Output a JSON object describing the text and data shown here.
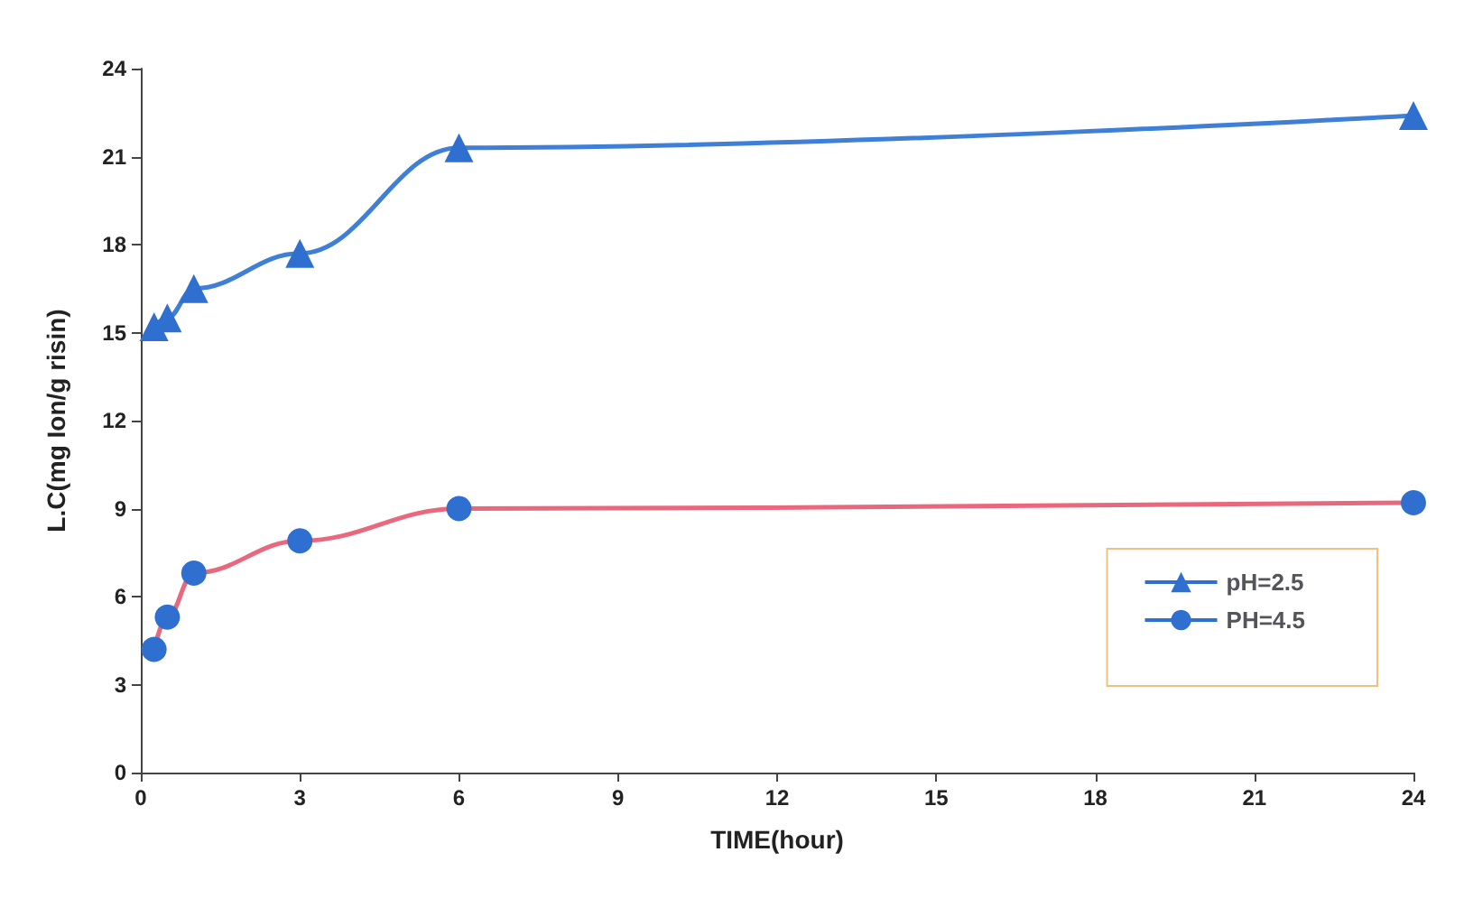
{
  "chart_data": {
    "type": "line",
    "xlabel": "TIME(hour)",
    "ylabel": "L.C(mg Ion/g risin)",
    "xlim": [
      0,
      24
    ],
    "xticks": [
      0,
      3,
      6,
      9,
      12,
      15,
      18,
      21,
      24
    ],
    "ylim": [
      0,
      24
    ],
    "yticks": [
      0,
      3,
      6,
      9,
      12,
      15,
      18,
      21,
      24
    ],
    "grid": false,
    "legend": "bottom right",
    "series": [
      {
        "name": "pH=2.5",
        "color": "#3f7fd6",
        "marker": "triangle",
        "x": [
          0.25,
          0.5,
          1,
          3,
          6,
          24
        ],
        "values": [
          15.2,
          15.5,
          16.5,
          17.7,
          21.3,
          22.4
        ]
      },
      {
        "name": "PH=4.5",
        "color": "#e8687e",
        "marker": "circle",
        "x": [
          0.25,
          0.5,
          1,
          3,
          6,
          24
        ],
        "values": [
          4.2,
          5.3,
          6.8,
          7.9,
          9.0,
          9.2
        ]
      }
    ]
  }
}
